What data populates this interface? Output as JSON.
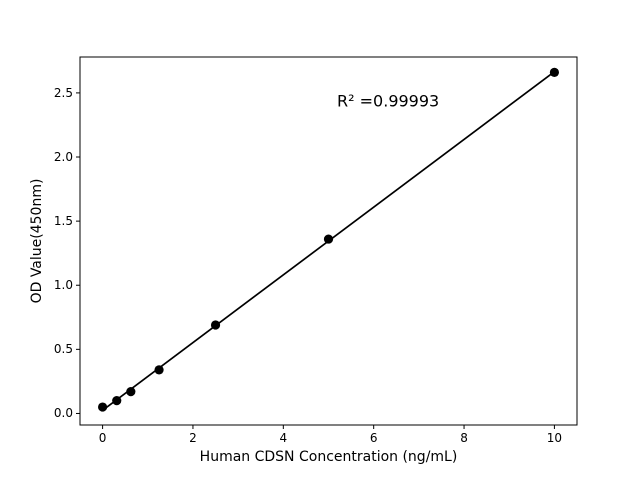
{
  "figure": {
    "background": "#ffffff",
    "foreground": "#000000"
  },
  "chart_data": {
    "type": "scatter",
    "title": "",
    "xlabel": "Human CDSN Concentration (ng/mL)",
    "ylabel": "OD Value(450nm)",
    "x": [
      0,
      0.313,
      0.625,
      1.25,
      2.5,
      5,
      10
    ],
    "y": [
      0.05,
      0.1,
      0.17,
      0.34,
      0.69,
      1.36,
      2.66
    ],
    "xlim": [
      -0.5,
      10.5
    ],
    "ylim": [
      -0.09,
      2.78
    ],
    "x_ticks": [
      0,
      2,
      4,
      6,
      8,
      10
    ],
    "x_tick_labels": [
      "0",
      "2",
      "4",
      "6",
      "8",
      "10"
    ],
    "y_ticks": [
      0.0,
      0.5,
      1.0,
      1.5,
      2.0,
      2.5
    ],
    "y_tick_labels": [
      "0.0",
      "0.5",
      "1.0",
      "1.5",
      "2.0",
      "2.5"
    ],
    "fit_line": {
      "slope": 0.2641,
      "intercept": 0.0243,
      "x_start": 0,
      "x_end": 10
    },
    "annotation": {
      "text": "R² =0.99993",
      "x": 6.32,
      "y": 2.44
    },
    "grid": false,
    "legend": null,
    "marker_color": "#000000",
    "line_color": "#000000"
  }
}
